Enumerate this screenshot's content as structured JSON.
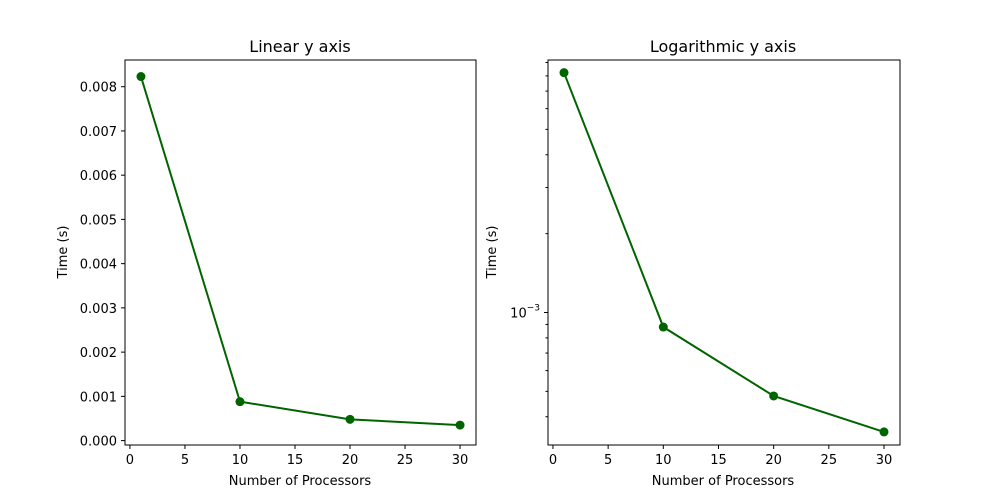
{
  "chart_data": [
    {
      "type": "line",
      "title": "Linear y axis",
      "xlabel": "Number of Processors",
      "ylabel": "Time (s)",
      "xlim": [
        -0.45,
        31.45
      ],
      "ylim": [
        -9.96e-05,
        0.0086036
      ],
      "yscale": "linear",
      "grid": false,
      "xticks": [
        0,
        5,
        10,
        15,
        20,
        25,
        30
      ],
      "xtick_labels": [
        "0",
        "5",
        "10",
        "15",
        "20",
        "25",
        "30"
      ],
      "yticks": [
        0.0,
        0.001,
        0.002,
        0.003,
        0.004,
        0.005,
        0.006,
        0.007,
        0.008
      ],
      "ytick_labels": [
        "0.000",
        "0.001",
        "0.002",
        "0.003",
        "0.004",
        "0.005",
        "0.006",
        "0.007",
        "0.008"
      ],
      "color": "#006400",
      "x": [
        1,
        10,
        20,
        30
      ],
      "y": [
        0.00823,
        0.00088,
        0.00048,
        0.00035
      ]
    },
    {
      "type": "line",
      "title": "Logarithmic y axis",
      "xlabel": "Number of Processors",
      "ylabel": "Time (s)",
      "xlim": [
        -0.45,
        31.45
      ],
      "ylim": [
        0.000312,
        0.0092
      ],
      "yscale": "log",
      "grid": false,
      "xticks": [
        0,
        5,
        10,
        15,
        20,
        25,
        30
      ],
      "xtick_labels": [
        "0",
        "5",
        "10",
        "15",
        "20",
        "25",
        "30"
      ],
      "ytick_major": [
        {
          "value": 0.001,
          "base": "10",
          "exponent": "−3"
        }
      ],
      "ytick_minor": [
        0.0004,
        0.0005,
        0.0006,
        0.0007,
        0.0008,
        0.0009,
        0.002,
        0.003,
        0.004,
        0.005,
        0.006,
        0.007,
        0.008,
        0.009
      ],
      "color": "#006400",
      "x": [
        1,
        10,
        20,
        30
      ],
      "y": [
        0.00823,
        0.00088,
        0.00048,
        0.00035
      ]
    }
  ]
}
